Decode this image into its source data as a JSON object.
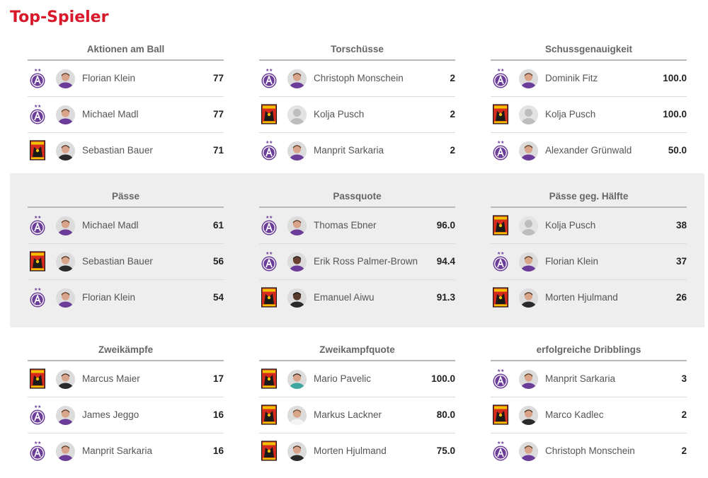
{
  "page": {
    "title": "Top-Spieler"
  },
  "colors": {
    "title_red": "#d7192b",
    "austria_violet": "#6b3d99",
    "altach_red": "#d42b1e",
    "altach_yellow": "#f2c200"
  },
  "icons": {
    "austria": "austria-wien-crest-icon",
    "altach": "altach-crest-icon",
    "player": "player-avatar-icon",
    "placeholder": "placeholder-avatar-icon"
  },
  "sections": [
    {
      "title": "Aktionen am Ball",
      "players": [
        {
          "club": "austria",
          "avatar": "purple",
          "name": "Florian Klein",
          "value": "77"
        },
        {
          "club": "austria",
          "avatar": "purple",
          "name": "Michael Madl",
          "value": "77"
        },
        {
          "club": "altach",
          "avatar": "black",
          "name": "Sebastian Bauer",
          "value": "71"
        }
      ]
    },
    {
      "title": "Torschüsse",
      "players": [
        {
          "club": "austria",
          "avatar": "purple",
          "name": "Christoph Monschein",
          "value": "2"
        },
        {
          "club": "altach",
          "avatar": "placeholder",
          "name": "Kolja Pusch",
          "value": "2"
        },
        {
          "club": "austria",
          "avatar": "purple",
          "name": "Manprit Sarkaria",
          "value": "2"
        }
      ]
    },
    {
      "title": "Schussgenauigkeit",
      "players": [
        {
          "club": "austria",
          "avatar": "purple",
          "name": "Dominik Fitz",
          "value": "100.0"
        },
        {
          "club": "altach",
          "avatar": "placeholder",
          "name": "Kolja Pusch",
          "value": "100.0"
        },
        {
          "club": "austria",
          "avatar": "purple",
          "name": "Alexander Grünwald",
          "value": "50.0"
        }
      ]
    },
    {
      "title": "Pässe",
      "players": [
        {
          "club": "austria",
          "avatar": "purple",
          "name": "Michael Madl",
          "value": "61"
        },
        {
          "club": "altach",
          "avatar": "black",
          "name": "Sebastian Bauer",
          "value": "56"
        },
        {
          "club": "austria",
          "avatar": "purple",
          "name": "Florian Klein",
          "value": "54"
        }
      ]
    },
    {
      "title": "Passquote",
      "players": [
        {
          "club": "austria",
          "avatar": "purple",
          "name": "Thomas Ebner",
          "value": "96.0"
        },
        {
          "club": "austria",
          "avatar": "purple-dark",
          "name": "Erik Ross Palmer-Brown",
          "value": "94.4"
        },
        {
          "club": "altach",
          "avatar": "black-dark",
          "name": "Emanuel Aiwu",
          "value": "91.3"
        }
      ]
    },
    {
      "title": "Pässe geg. Hälfte",
      "players": [
        {
          "club": "altach",
          "avatar": "placeholder",
          "name": "Kolja Pusch",
          "value": "38"
        },
        {
          "club": "austria",
          "avatar": "purple",
          "name": "Florian Klein",
          "value": "37"
        },
        {
          "club": "altach",
          "avatar": "black",
          "name": "Morten Hjulmand",
          "value": "26"
        }
      ]
    },
    {
      "title": "Zweikämpfe",
      "players": [
        {
          "club": "altach",
          "avatar": "black",
          "name": "Marcus Maier",
          "value": "17"
        },
        {
          "club": "austria",
          "avatar": "purple",
          "name": "James Jeggo",
          "value": "16"
        },
        {
          "club": "austria",
          "avatar": "purple",
          "name": "Manprit Sarkaria",
          "value": "16"
        }
      ]
    },
    {
      "title": "Zweikampfquote",
      "players": [
        {
          "club": "altach",
          "avatar": "teal",
          "name": "Mario Pavelic",
          "value": "100.0"
        },
        {
          "club": "altach",
          "avatar": "white",
          "name": "Markus Lackner",
          "value": "80.0"
        },
        {
          "club": "altach",
          "avatar": "black",
          "name": "Morten Hjulmand",
          "value": "75.0"
        }
      ]
    },
    {
      "title": "erfolgreiche Dribblings",
      "players": [
        {
          "club": "austria",
          "avatar": "purple",
          "name": "Manprit Sarkaria",
          "value": "3"
        },
        {
          "club": "altach",
          "avatar": "black",
          "name": "Marco Kadlec",
          "value": "2"
        },
        {
          "club": "austria",
          "avatar": "purple",
          "name": "Christoph Monschein",
          "value": "2"
        }
      ]
    }
  ]
}
